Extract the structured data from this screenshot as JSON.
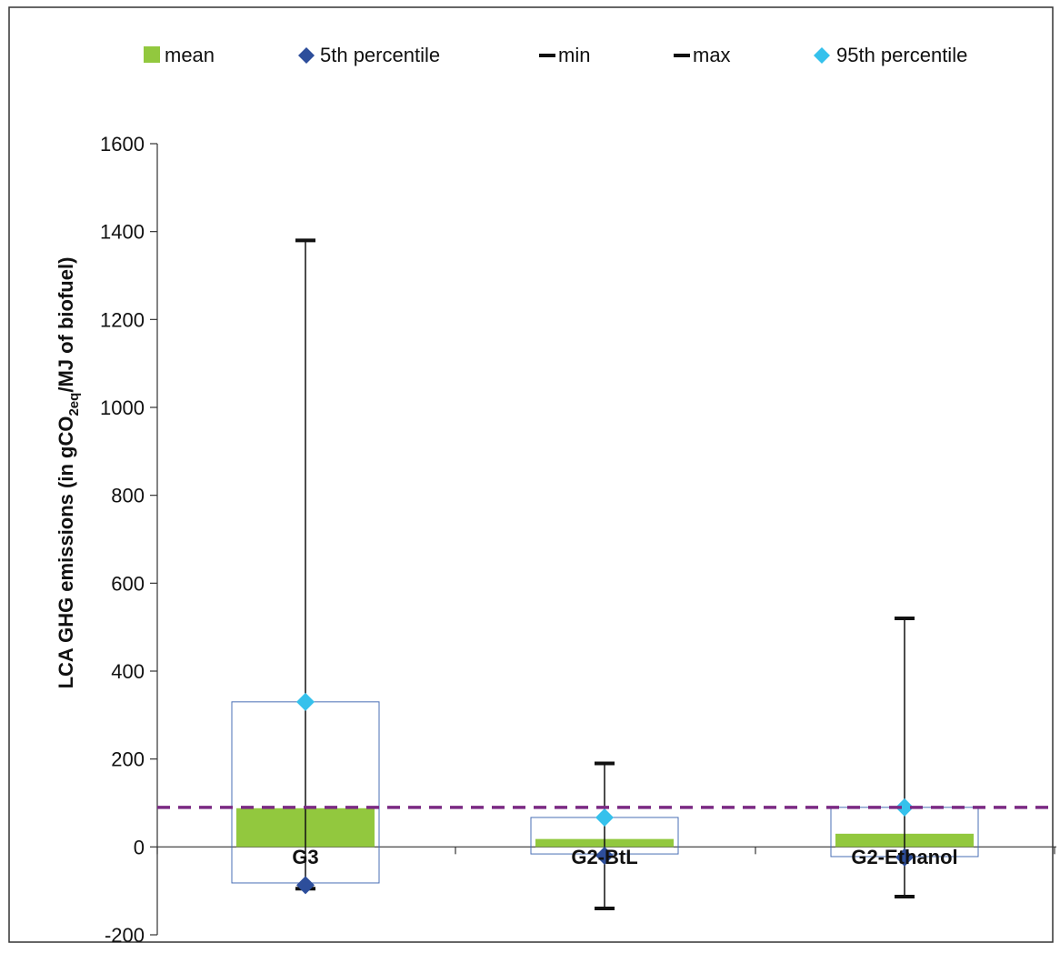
{
  "chart_data": {
    "type": "box",
    "categories": [
      "G3",
      "G2-BtL",
      "G2-Ethanol"
    ],
    "series": [
      {
        "name": "mean",
        "values": [
          88,
          18,
          30
        ]
      },
      {
        "name": "5th percentile",
        "values": [
          -87,
          -20,
          -24
        ]
      },
      {
        "name": "min",
        "values": [
          -95,
          -140,
          -113
        ]
      },
      {
        "name": "max",
        "values": [
          1380,
          190,
          520
        ]
      },
      {
        "name": "95th percentile",
        "values": [
          330,
          67,
          90
        ]
      }
    ],
    "reference_line": {
      "value": 90,
      "style": "dashed"
    },
    "ylabel": {
      "prefix": "LCA GHG emissions (in gCO",
      "subscript": "2eq",
      "suffix": "/MJ of biofuel)"
    },
    "ylim": [
      -200,
      1600
    ],
    "yticks": [
      "-200",
      "0",
      "200",
      "400",
      "600",
      "800",
      "1000",
      "1200",
      "1400",
      "1600"
    ],
    "legend_position": "top",
    "colors": {
      "mean": "#92c83e",
      "p5": "#2d4e9b",
      "p95": "#35c1ec",
      "minmax": "#111111",
      "box_outline": "#4a6fb5",
      "reference_line": "#7b2a83",
      "axis": "#333333"
    },
    "icons": {
      "mean": "square-icon",
      "p5": "diamond-icon",
      "min": "dash-icon",
      "max": "dash-icon",
      "p95": "diamond-icon"
    }
  }
}
